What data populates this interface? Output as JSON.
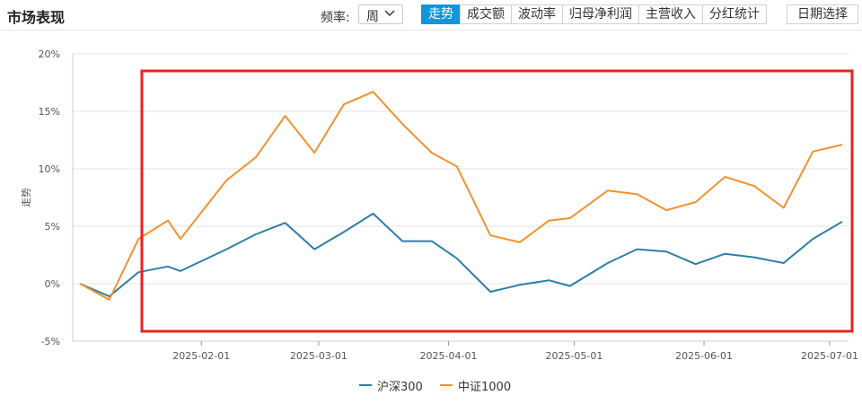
{
  "header": {
    "title": "市场表现",
    "frequency_label": "频率:",
    "frequency_value": "周",
    "tabs": [
      "走势",
      "成交额",
      "波动率",
      "归母净利润",
      "主营收入",
      "分红统计"
    ],
    "active_tab": "走势",
    "date_button": "日期选择"
  },
  "colors": {
    "series_1": "#2e7fa6",
    "series_2": "#f0922f",
    "highlight_box": "#e8231e",
    "active_tab": "#1296db"
  },
  "chart_data": {
    "type": "line",
    "ylabel": "走势",
    "ylim": [
      -5,
      20
    ],
    "yticks": [
      -5,
      0,
      5,
      10,
      15,
      20
    ],
    "ytick_labels": [
      "-5%",
      "0%",
      "5%",
      "10%",
      "15%",
      "20%"
    ],
    "xlim": [
      "2025-01-03",
      "2025-07-04"
    ],
    "xtick_dates": [
      "2025-02-01",
      "2025-03-01",
      "2025-04-01",
      "2025-05-01",
      "2025-06-01",
      "2025-07-01"
    ],
    "xtick_labels": [
      "2025-02-01",
      "2025-03-01",
      "2025-04-01",
      "2025-05-01",
      "2025-06-01",
      "2025-07-01"
    ],
    "grid": true,
    "legend_position": "bottom-center",
    "x": [
      "2025-01-03",
      "2025-01-10",
      "2025-01-17",
      "2025-01-24",
      "2025-01-27",
      "2025-02-07",
      "2025-02-14",
      "2025-02-21",
      "2025-02-28",
      "2025-03-07",
      "2025-03-14",
      "2025-03-21",
      "2025-03-28",
      "2025-04-03",
      "2025-04-11",
      "2025-04-18",
      "2025-04-25",
      "2025-04-30",
      "2025-05-09",
      "2025-05-16",
      "2025-05-23",
      "2025-05-30",
      "2025-06-06",
      "2025-06-13",
      "2025-06-20",
      "2025-06-27",
      "2025-07-04"
    ],
    "series": [
      {
        "name": "沪深300",
        "values": [
          0,
          -1.1,
          1.0,
          1.5,
          1.1,
          3.0,
          4.3,
          5.3,
          3.0,
          4.5,
          6.1,
          3.7,
          3.7,
          2.2,
          -0.7,
          -0.1,
          0.3,
          -0.2,
          1.8,
          3.0,
          2.8,
          1.7,
          2.6,
          2.3,
          1.8,
          3.9,
          5.4
        ]
      },
      {
        "name": "中证1000",
        "values": [
          0,
          -1.4,
          3.9,
          5.5,
          3.9,
          9.0,
          11.0,
          14.6,
          11.4,
          15.6,
          16.7,
          13.9,
          11.4,
          10.2,
          4.2,
          3.6,
          5.5,
          5.7,
          8.1,
          7.8,
          6.4,
          7.1,
          9.3,
          8.5,
          6.6,
          11.5,
          12.1
        ]
      }
    ]
  }
}
